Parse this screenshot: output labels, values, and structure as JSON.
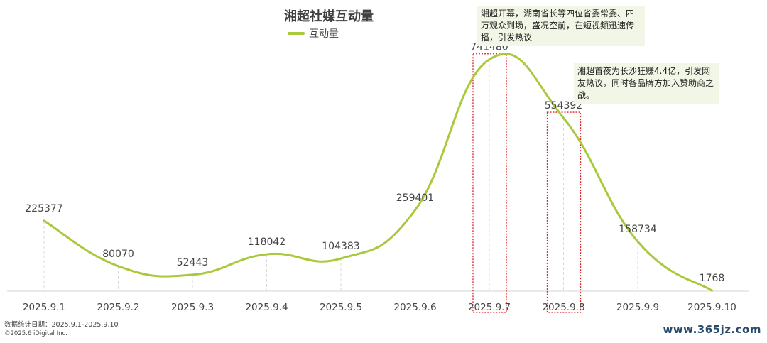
{
  "chart_data": {
    "type": "line",
    "title": "湘超社媒互动量",
    "categories": [
      "2025.9.1",
      "2025.9.2",
      "2025.9.3",
      "2025.9.4",
      "2025.9.5",
      "2025.9.6",
      "2025.9.7",
      "2025.9.8",
      "2025.9.9",
      "2025.9.10"
    ],
    "series": [
      {
        "name": "互动量",
        "values": [
          225377,
          80070,
          52443,
          118042,
          104383,
          259401,
          741480,
          554392,
          158734,
          1768
        ],
        "color": "#a9c93b"
      }
    ],
    "ylim": [
      0,
      800000
    ],
    "grid": false,
    "legend": "top-center",
    "highlighted_categories": [
      "2025.9.7",
      "2025.9.8"
    ],
    "annotations": [
      {
        "target": "2025.9.7",
        "text": "湘超开幕，湖南省长等四位省委常委、四万观众到场，盛况空前，在短视频迅速传播，引发热议"
      },
      {
        "target": "2025.9.8",
        "text": "湘超首夜为长沙狂赚4.4亿，引发网友热议，同时各品牌方加入赞助商之战。"
      }
    ]
  },
  "footer": {
    "data_period": "数据统计日期：2025.9.1-2025.9.10",
    "copyright": "©2025.6 iDigital Inc."
  },
  "watermark": "www.365jz.com"
}
